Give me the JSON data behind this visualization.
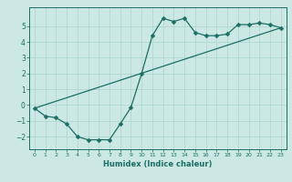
{
  "xlabel": "Humidex (Indice chaleur)",
  "bg_color": "#cce8e4",
  "line_color": "#1a6e64",
  "grid_color": "#aad4ce",
  "xlim": [
    -0.5,
    23.5
  ],
  "ylim": [
    -2.8,
    6.2
  ],
  "yticks": [
    -2,
    -1,
    0,
    1,
    2,
    3,
    4,
    5
  ],
  "xticks": [
    0,
    1,
    2,
    3,
    4,
    5,
    6,
    7,
    8,
    9,
    10,
    11,
    12,
    13,
    14,
    15,
    16,
    17,
    18,
    19,
    20,
    21,
    22,
    23
  ],
  "curve1_x": [
    0,
    1,
    2,
    3,
    4,
    5,
    6,
    7,
    8,
    9,
    10,
    11,
    12,
    13,
    14,
    15,
    16,
    17,
    18,
    19,
    20,
    21,
    22,
    23
  ],
  "curve1_y": [
    -0.2,
    -0.7,
    -0.8,
    -1.2,
    -2.0,
    -2.2,
    -2.2,
    -2.2,
    -1.2,
    -0.15,
    2.0,
    4.4,
    5.5,
    5.3,
    5.5,
    4.6,
    4.4,
    4.4,
    4.5,
    5.1,
    5.1,
    5.2,
    5.1,
    4.9
  ],
  "curve2_x": [
    0,
    23
  ],
  "curve2_y": [
    -0.2,
    4.9
  ],
  "markersize": 2.5,
  "linewidth": 0.9
}
